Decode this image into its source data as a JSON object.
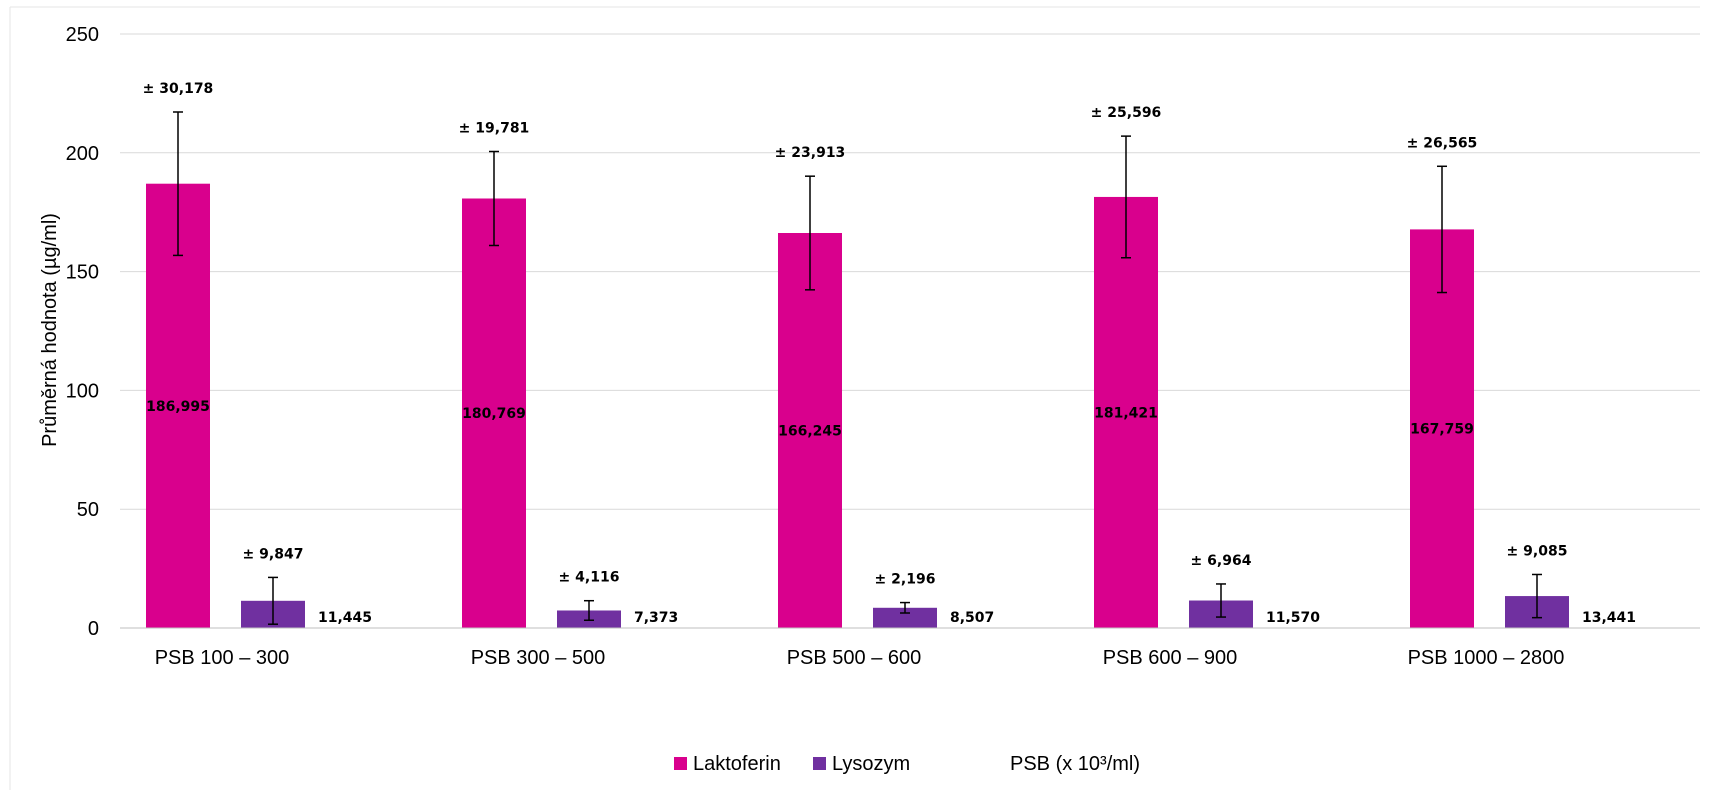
{
  "chart_data": {
    "type": "bar",
    "categories": [
      "PSB 100 – 300",
      "PSB 300 – 500",
      "PSB 500 – 600",
      "PSB 600 – 900",
      "PSB 1000 – 2800"
    ],
    "series": [
      {
        "name": "Laktoferin",
        "color": "#d9008d",
        "values": [
          186.995,
          180.769,
          166.245,
          181.421,
          167.759
        ],
        "value_labels": [
          "186,995",
          "180,769",
          "166,245",
          "181,421",
          "167,759"
        ],
        "errors": [
          30.178,
          19.781,
          23.913,
          25.596,
          26.565
        ],
        "error_labels": [
          "± 30,178",
          "± 19,781",
          "± 23,913",
          "± 25,596",
          "± 26,565"
        ]
      },
      {
        "name": "Lysozym",
        "color": "#7030a0",
        "values": [
          11.445,
          7.373,
          8.507,
          11.57,
          13.441
        ],
        "value_labels": [
          "11,445",
          "7,373",
          "8,507",
          "11,570",
          "13,441"
        ],
        "errors": [
          9.847,
          4.116,
          2.196,
          6.964,
          9.085
        ],
        "error_labels": [
          "± 9,847",
          "± 4,116",
          "± 2,196",
          "± 6,964",
          "± 9,085"
        ]
      }
    ],
    "title": "",
    "xlabel": "PSB (x 10³/ml)",
    "ylabel": "Průměrná hodnota (µg/ml)",
    "ylim": [
      0,
      250
    ],
    "yticks": [
      0,
      50,
      100,
      150,
      200,
      250
    ],
    "grid": true,
    "legend": "bottom"
  }
}
